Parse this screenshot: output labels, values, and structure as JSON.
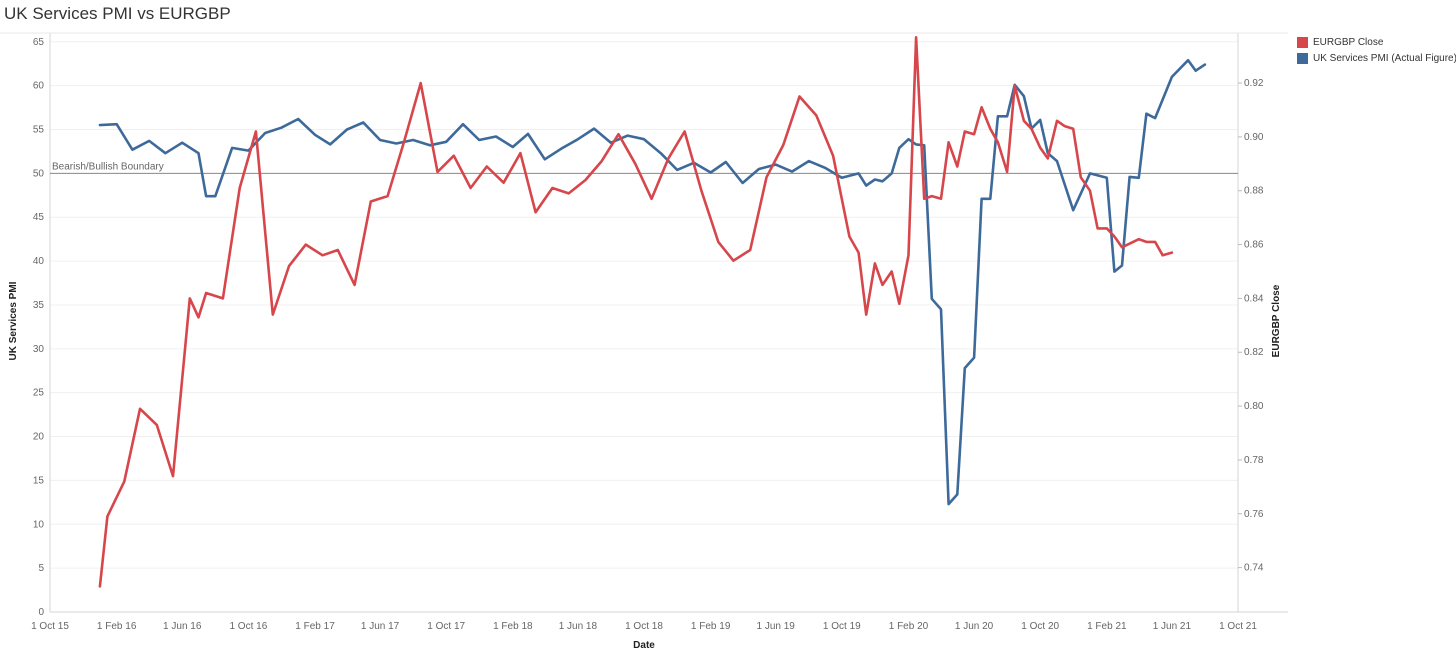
{
  "title": "UK Services PMI vs EURGBP",
  "legend": {
    "items": [
      {
        "label": "EURGBP Close",
        "color": "#d6464b"
      },
      {
        "label": "UK Services PMI (Actual Figure)",
        "color": "#3d6a9a"
      }
    ]
  },
  "chart_data": {
    "type": "line",
    "title": "UK Services PMI vs EURGBP",
    "xlabel": "Date",
    "ylabel_left": "UK Services PMI",
    "ylabel_right": "EURGBP Close",
    "x_range": [
      "2015-10-01",
      "2021-10-01"
    ],
    "x_ticks": [
      "1 Oct 15",
      "1 Feb 16",
      "1 Jun 16",
      "1 Oct 16",
      "1 Feb 17",
      "1 Jun 17",
      "1 Oct 17",
      "1 Feb 18",
      "1 Jun 18",
      "1 Oct 18",
      "1 Feb 19",
      "1 Jun 19",
      "1 Oct 19",
      "1 Feb 20",
      "1 Jun 20",
      "1 Oct 20",
      "1 Feb 21",
      "1 Jun 21",
      "1 Oct 21"
    ],
    "ylim_left": [
      0,
      66
    ],
    "yticks_left": [
      0,
      5,
      10,
      15,
      20,
      25,
      30,
      35,
      40,
      45,
      50,
      55,
      60,
      65
    ],
    "ylim_right": [
      0.7235,
      0.9386
    ],
    "yticks_right": [
      "0.74",
      "0.76",
      "0.78",
      "0.80",
      "0.82",
      "0.84",
      "0.86",
      "0.88",
      "0.90",
      "0.92"
    ],
    "reference_line": {
      "label": "Bearish/Bullish Boundary",
      "value": 50
    },
    "grid": true,
    "legend_position": "right",
    "series": [
      {
        "name": "UK Services PMI (Actual Figure)",
        "axis": "left",
        "color": "#3d6a9a",
        "points": [
          [
            "2016-01-01",
            55.5
          ],
          [
            "2016-02-01",
            55.6
          ],
          [
            "2016-03-01",
            52.7
          ],
          [
            "2016-04-01",
            53.7
          ],
          [
            "2016-05-01",
            52.3
          ],
          [
            "2016-06-01",
            53.5
          ],
          [
            "2016-07-01",
            52.3
          ],
          [
            "2016-07-15",
            47.4
          ],
          [
            "2016-08-01",
            47.4
          ],
          [
            "2016-09-01",
            52.9
          ],
          [
            "2016-10-01",
            52.6
          ],
          [
            "2016-11-01",
            54.6
          ],
          [
            "2016-12-01",
            55.2
          ],
          [
            "2017-01-01",
            56.2
          ],
          [
            "2017-02-01",
            54.4
          ],
          [
            "2017-03-01",
            53.3
          ],
          [
            "2017-04-01",
            55.0
          ],
          [
            "2017-05-01",
            55.8
          ],
          [
            "2017-06-01",
            53.8
          ],
          [
            "2017-07-01",
            53.4
          ],
          [
            "2017-08-01",
            53.8
          ],
          [
            "2017-09-01",
            53.2
          ],
          [
            "2017-10-01",
            53.6
          ],
          [
            "2017-11-01",
            55.6
          ],
          [
            "2017-12-01",
            53.8
          ],
          [
            "2018-01-01",
            54.2
          ],
          [
            "2018-02-01",
            53.0
          ],
          [
            "2018-03-01",
            54.5
          ],
          [
            "2018-04-01",
            51.6
          ],
          [
            "2018-05-01",
            52.8
          ],
          [
            "2018-06-01",
            53.9
          ],
          [
            "2018-07-01",
            55.1
          ],
          [
            "2018-08-01",
            53.5
          ],
          [
            "2018-09-01",
            54.3
          ],
          [
            "2018-10-01",
            53.9
          ],
          [
            "2018-11-01",
            52.3
          ],
          [
            "2018-12-01",
            50.4
          ],
          [
            "2019-01-01",
            51.2
          ],
          [
            "2019-02-01",
            50.1
          ],
          [
            "2019-03-01",
            51.3
          ],
          [
            "2019-04-01",
            48.9
          ],
          [
            "2019-05-01",
            50.5
          ],
          [
            "2019-06-01",
            51.0
          ],
          [
            "2019-07-01",
            50.2
          ],
          [
            "2019-08-01",
            51.4
          ],
          [
            "2019-09-01",
            50.6
          ],
          [
            "2019-10-01",
            49.5
          ],
          [
            "2019-11-01",
            50.0
          ],
          [
            "2019-11-15",
            48.6
          ],
          [
            "2019-12-01",
            49.3
          ],
          [
            "2019-12-15",
            49.1
          ],
          [
            "2020-01-01",
            50.0
          ],
          [
            "2020-01-15",
            52.9
          ],
          [
            "2020-02-01",
            53.9
          ],
          [
            "2020-02-15",
            53.3
          ],
          [
            "2020-03-01",
            53.2
          ],
          [
            "2020-03-15",
            35.7
          ],
          [
            "2020-04-01",
            34.5
          ],
          [
            "2020-04-15",
            12.3
          ],
          [
            "2020-05-01",
            13.4
          ],
          [
            "2020-05-15",
            27.8
          ],
          [
            "2020-06-01",
            29.0
          ],
          [
            "2020-06-15",
            47.1
          ],
          [
            "2020-07-01",
            47.1
          ],
          [
            "2020-07-15",
            56.5
          ],
          [
            "2020-08-01",
            56.5
          ],
          [
            "2020-08-15",
            60.1
          ],
          [
            "2020-09-01",
            58.8
          ],
          [
            "2020-09-15",
            55.1
          ],
          [
            "2020-10-01",
            56.1
          ],
          [
            "2020-10-15",
            52.3
          ],
          [
            "2020-11-01",
            51.4
          ],
          [
            "2020-12-01",
            45.8
          ],
          [
            "2021-01-01",
            50.0
          ],
          [
            "2021-02-01",
            49.5
          ],
          [
            "2021-02-15",
            38.8
          ],
          [
            "2021-03-01",
            39.5
          ],
          [
            "2021-03-15",
            49.6
          ],
          [
            "2021-04-01",
            49.5
          ],
          [
            "2021-04-15",
            56.8
          ],
          [
            "2021-05-01",
            56.3
          ],
          [
            "2021-06-01",
            61.0
          ],
          [
            "2021-07-01",
            62.9
          ],
          [
            "2021-07-15",
            61.7
          ],
          [
            "2021-08-01",
            62.4
          ]
        ]
      },
      {
        "name": "EURGBP Close",
        "axis": "right",
        "color": "#d6464b",
        "points": [
          [
            "2016-01-01",
            0.733
          ],
          [
            "2016-01-15",
            0.759
          ],
          [
            "2016-02-15",
            0.772
          ],
          [
            "2016-03-15",
            0.799
          ],
          [
            "2016-04-15",
            0.793
          ],
          [
            "2016-05-15",
            0.774
          ],
          [
            "2016-06-15",
            0.84
          ],
          [
            "2016-07-01",
            0.833
          ],
          [
            "2016-07-15",
            0.842
          ],
          [
            "2016-08-15",
            0.84
          ],
          [
            "2016-09-15",
            0.881
          ],
          [
            "2016-10-15",
            0.902
          ],
          [
            "2016-11-15",
            0.834
          ],
          [
            "2016-12-15",
            0.852
          ],
          [
            "2017-01-15",
            0.86
          ],
          [
            "2017-02-15",
            0.856
          ],
          [
            "2017-03-15",
            0.858
          ],
          [
            "2017-04-15",
            0.845
          ],
          [
            "2017-05-15",
            0.876
          ],
          [
            "2017-06-15",
            0.878
          ],
          [
            "2017-07-15",
            0.898
          ],
          [
            "2017-08-15",
            0.92
          ],
          [
            "2017-09-15",
            0.887
          ],
          [
            "2017-10-15",
            0.893
          ],
          [
            "2017-11-15",
            0.881
          ],
          [
            "2017-12-15",
            0.889
          ],
          [
            "2018-01-15",
            0.883
          ],
          [
            "2018-02-15",
            0.894
          ],
          [
            "2018-03-15",
            0.872
          ],
          [
            "2018-04-15",
            0.881
          ],
          [
            "2018-05-15",
            0.879
          ],
          [
            "2018-06-15",
            0.884
          ],
          [
            "2018-07-15",
            0.891
          ],
          [
            "2018-08-15",
            0.901
          ],
          [
            "2018-09-15",
            0.89
          ],
          [
            "2018-10-15",
            0.877
          ],
          [
            "2018-11-15",
            0.892
          ],
          [
            "2018-12-15",
            0.902
          ],
          [
            "2019-01-15",
            0.88
          ],
          [
            "2019-02-15",
            0.861
          ],
          [
            "2019-03-15",
            0.854
          ],
          [
            "2019-04-15",
            0.858
          ],
          [
            "2019-05-15",
            0.885
          ],
          [
            "2019-06-15",
            0.897
          ],
          [
            "2019-07-15",
            0.915
          ],
          [
            "2019-08-15",
            0.908
          ],
          [
            "2019-09-15",
            0.893
          ],
          [
            "2019-10-15",
            0.863
          ],
          [
            "2019-11-01",
            0.857
          ],
          [
            "2019-11-15",
            0.834
          ],
          [
            "2019-12-01",
            0.853
          ],
          [
            "2019-12-15",
            0.845
          ],
          [
            "2020-01-01",
            0.85
          ],
          [
            "2020-01-15",
            0.838
          ],
          [
            "2020-02-01",
            0.856
          ],
          [
            "2020-02-15",
            0.937
          ],
          [
            "2020-03-01",
            0.877
          ],
          [
            "2020-03-15",
            0.878
          ],
          [
            "2020-04-01",
            0.877
          ],
          [
            "2020-04-15",
            0.898
          ],
          [
            "2020-05-01",
            0.889
          ],
          [
            "2020-05-15",
            0.902
          ],
          [
            "2020-06-01",
            0.901
          ],
          [
            "2020-06-15",
            0.911
          ],
          [
            "2020-07-01",
            0.903
          ],
          [
            "2020-07-15",
            0.898
          ],
          [
            "2020-08-01",
            0.887
          ],
          [
            "2020-08-15",
            0.919
          ],
          [
            "2020-09-01",
            0.906
          ],
          [
            "2020-09-15",
            0.903
          ],
          [
            "2020-10-01",
            0.896
          ],
          [
            "2020-10-15",
            0.892
          ],
          [
            "2020-11-01",
            0.906
          ],
          [
            "2020-11-15",
            0.904
          ],
          [
            "2020-12-01",
            0.903
          ],
          [
            "2020-12-15",
            0.885
          ],
          [
            "2021-01-01",
            0.88
          ],
          [
            "2021-01-15",
            0.866
          ],
          [
            "2021-02-01",
            0.866
          ],
          [
            "2021-02-15",
            0.863
          ],
          [
            "2021-03-01",
            0.859
          ],
          [
            "2021-04-01",
            0.862
          ],
          [
            "2021-04-15",
            0.861
          ],
          [
            "2021-05-01",
            0.861
          ],
          [
            "2021-05-15",
            0.856
          ],
          [
            "2021-06-01",
            0.857
          ]
        ]
      }
    ]
  }
}
